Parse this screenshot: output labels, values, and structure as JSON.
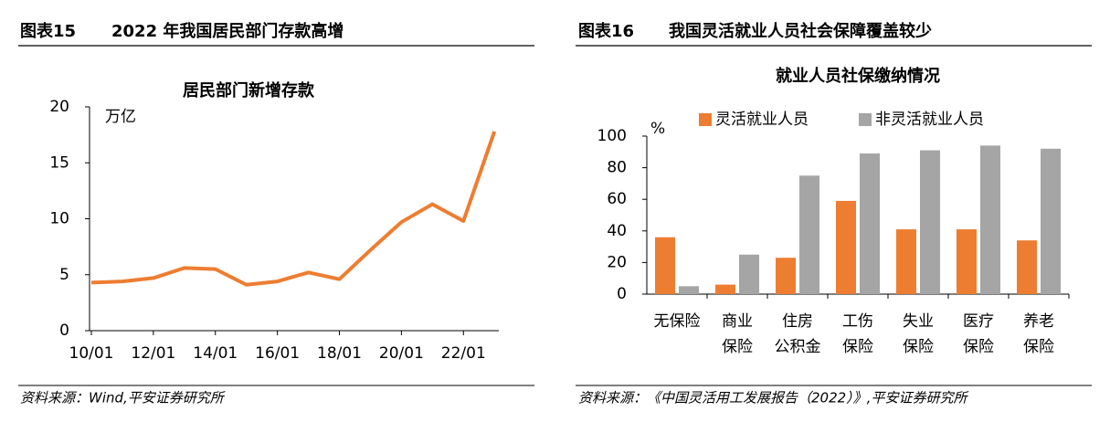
{
  "panels": [
    {
      "figure": "图表15",
      "heading": "2022 年我国居民部门存款高增",
      "source": "资料来源：Wind,平安证券研究所"
    },
    {
      "figure": "图表16",
      "heading": "我国灵活就业人员社会保障覆盖较少",
      "source": "资料来源：《中国灵活用工发展报告（2022）》,平安证券研究所"
    }
  ],
  "chart_data": [
    {
      "type": "line",
      "title": "居民部门新增存款",
      "y_unit": "万亿",
      "categories": [
        "10/01",
        null,
        "12/01",
        null,
        "14/01",
        null,
        "16/01",
        null,
        "18/01",
        null,
        "20/01",
        null,
        "22/01",
        null
      ],
      "values": [
        4.3,
        4.4,
        4.7,
        5.6,
        5.5,
        4.1,
        4.4,
        5.2,
        4.6,
        7.2,
        9.7,
        11.3,
        9.8,
        17.8
      ],
      "color": "#ed7d31",
      "ylim": [
        0,
        20
      ],
      "yticks": [
        0,
        5,
        10,
        15,
        20
      ]
    },
    {
      "type": "bar",
      "title": "就业人员社保缴纳情况",
      "y_unit": "%",
      "categories": [
        "无保险",
        "商业\n保险",
        "住房\n公积金",
        "工伤\n保险",
        "失业\n保险",
        "医疗\n保险",
        "养老\n保险"
      ],
      "series": [
        {
          "name": "灵活就业人员",
          "color": "#ed7d31",
          "values": [
            36,
            6,
            23,
            59,
            41,
            41,
            34
          ]
        },
        {
          "name": "非灵活就业人员",
          "color": "#a5a5a5",
          "values": [
            5,
            25,
            75,
            89,
            91,
            94,
            92
          ]
        }
      ],
      "ylim": [
        0,
        100
      ],
      "yticks": [
        0,
        20,
        40,
        60,
        80,
        100
      ],
      "legend": "top"
    }
  ]
}
